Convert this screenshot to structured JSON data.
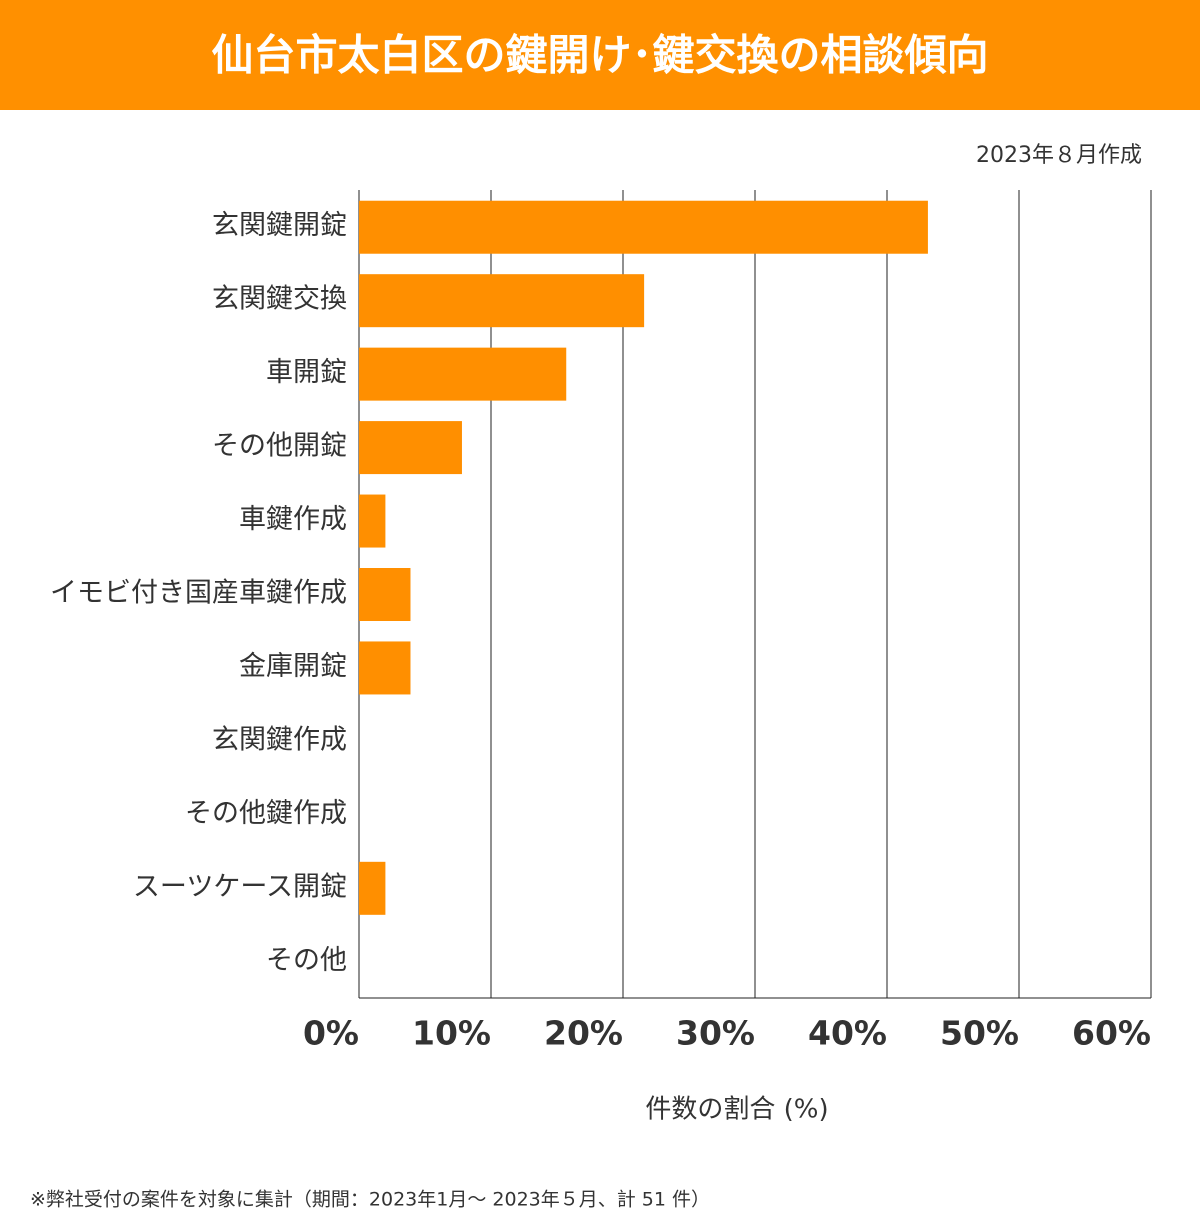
{
  "chart_data": {
    "type": "bar",
    "orientation": "horizontal",
    "title": "仙台市太白区の鍵開け･鍵交換の相談傾向",
    "subtitle": "2023年８月作成",
    "categories": [
      "玄関鍵開錠",
      "玄関鍵交換",
      "車開錠",
      "その他開錠",
      "車鍵作成",
      "イモビ付き国産車鍵作成",
      "金庫開錠",
      "玄関鍵作成",
      "その他鍵作成",
      "スーツケース開錠",
      "その他"
    ],
    "values": [
      43.1,
      21.6,
      15.7,
      7.8,
      2.0,
      3.9,
      3.9,
      0,
      0,
      2.0,
      0
    ],
    "color": "#ff8f00",
    "xlim": [
      0,
      60
    ],
    "xticks": [
      {
        "value": 0,
        "label": "0%"
      },
      {
        "value": 10,
        "label": "10%"
      },
      {
        "value": 20,
        "label": "20%"
      },
      {
        "value": 30,
        "label": "30%"
      },
      {
        "value": 40,
        "label": "40%"
      },
      {
        "value": 50,
        "label": "50%"
      },
      {
        "value": 60,
        "label": "60%"
      }
    ],
    "xlabel": "件数の割合 (%)",
    "grid": true,
    "footnote": "※弊社受付の案件を対象に集計（期間：2023年1月～ 2023年５月、計 51 件）"
  }
}
